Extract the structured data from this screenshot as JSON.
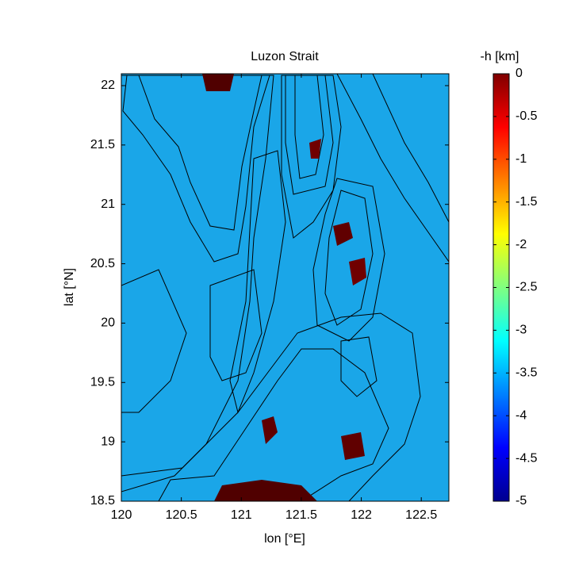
{
  "chart_data": {
    "type": "heatmap",
    "title": "Luzon Strait",
    "x_label": "lon [°E]",
    "y_label": "lat [°N]",
    "xlim": [
      120,
      122.73
    ],
    "ylim": [
      18.5,
      22.1
    ],
    "xticks": [
      120,
      120.5,
      121,
      121.5,
      122,
      122.5
    ],
    "yticks": [
      18.5,
      19,
      19.5,
      20,
      20.5,
      21,
      21.5,
      22
    ],
    "colorbar": {
      "label": "-h [km]",
      "clim": [
        -5,
        0
      ],
      "ticks": [
        0,
        -0.5,
        -1,
        -1.5,
        -2,
        -2.5,
        -3,
        -3.5,
        -4,
        -4.5,
        -5
      ],
      "colormap": [
        "#00008f",
        "#0000ff",
        "#0080ff",
        "#00ffff",
        "#80ff80",
        "#ffff00",
        "#ff8000",
        "#ff0000",
        "#800000"
      ]
    }
  }
}
